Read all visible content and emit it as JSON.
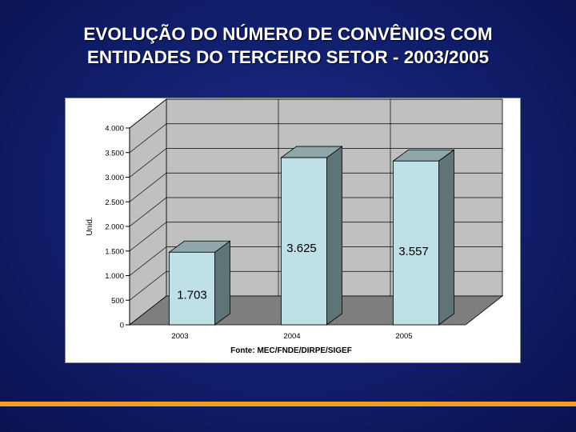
{
  "slide": {
    "title_line1": "EVOLUÇÃO DO NÚMERO DE CONVÊNIOS COM",
    "title_line2": "ENTIDADES DO TERCEIRO SETOR - 2003/2005"
  },
  "chart_data": {
    "type": "bar",
    "categories": [
      "2003",
      "2004",
      "2005"
    ],
    "values": [
      1703,
      3625,
      3557
    ],
    "data_labels": [
      "1.703",
      "3.625",
      "3.557"
    ],
    "ylabel": "Unid.",
    "ylim": [
      0,
      4000
    ],
    "yticks": [
      0,
      500,
      1000,
      1500,
      2000,
      2500,
      3000,
      3500,
      4000
    ],
    "ytick_labels": [
      "0",
      "500",
      "1.000",
      "1.500",
      "2.000",
      "2.500",
      "3.000",
      "3.500",
      "4.000"
    ],
    "source_note": "Fonte: MEC/FNDE/DIRPE/SIGEF",
    "grid": true,
    "style": "3d-bar",
    "colors": {
      "bar_front": "#bfe0e6",
      "bar_top": "#8fa7aa",
      "bar_side": "#5e7476",
      "wall": "#c0c0c0",
      "floor": "#7e7e7e",
      "grid": "#000000"
    }
  }
}
